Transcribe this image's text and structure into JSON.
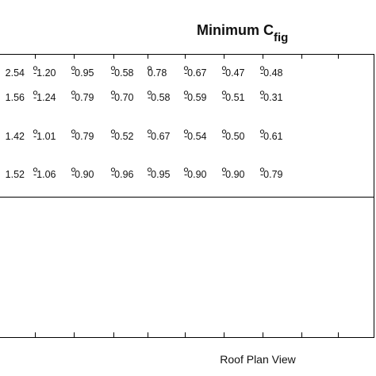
{
  "title": {
    "main": "Minimum C",
    "subscript": "fig"
  },
  "rows": [
    [
      "2.54",
      "-1.20",
      "-0.95",
      "-0.58",
      "0.78",
      "-0.67",
      "-0.47",
      "-0.48"
    ],
    [
      "1.56",
      "-1.24",
      "-0.79",
      "-0.70",
      "-0.58",
      "-0.59",
      "-0.51",
      "-0.31"
    ],
    [
      "1.42",
      "-1.01",
      "-0.79",
      "-0.52",
      "-0.67",
      "-0.54",
      "-0.50",
      "-0.61"
    ],
    [
      "1.52",
      "-1.06",
      "-0.90",
      "-0.96",
      "-0.95",
      "-0.90",
      "-0.90",
      "-0.79"
    ]
  ],
  "footer_label": "Roof Plan View"
}
